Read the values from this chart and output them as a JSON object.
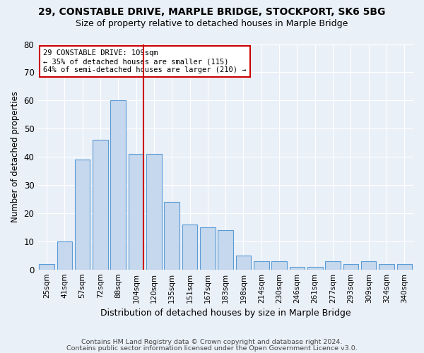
{
  "title": "29, CONSTABLE DRIVE, MARPLE BRIDGE, STOCKPORT, SK6 5BG",
  "subtitle": "Size of property relative to detached houses in Marple Bridge",
  "xlabel": "Distribution of detached houses by size in Marple Bridge",
  "ylabel": "Number of detached properties",
  "categories": [
    "25sqm",
    "41sqm",
    "57sqm",
    "72sqm",
    "88sqm",
    "104sqm",
    "120sqm",
    "135sqm",
    "151sqm",
    "167sqm",
    "183sqm",
    "198sqm",
    "214sqm",
    "230sqm",
    "246sqm",
    "261sqm",
    "277sqm",
    "293sqm",
    "309sqm",
    "324sqm",
    "340sqm"
  ],
  "values": [
    2,
    10,
    39,
    46,
    60,
    41,
    41,
    24,
    16,
    15,
    14,
    5,
    3,
    3,
    1,
    1,
    3,
    2,
    3,
    2,
    2
  ],
  "bar_color": "#c5d8ed",
  "bar_edge_color": "#5b9bd5",
  "background_color": "#eaf0f8",
  "property_line_label": "29 CONSTABLE DRIVE: 109sqm",
  "annotation_line1": "← 35% of detached houses are smaller (115)",
  "annotation_line2": "64% of semi-detached houses are larger (210) →",
  "annotation_box_color": "#ffffff",
  "annotation_box_edge": "#cc0000",
  "ylim": [
    0,
    80
  ],
  "footer1": "Contains HM Land Registry data © Crown copyright and database right 2024.",
  "footer2": "Contains public sector information licensed under the Open Government Licence v3.0."
}
